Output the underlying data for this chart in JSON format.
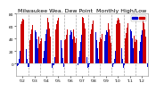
{
  "title": "Milwaukee Wea. Dew Point  Monthly High/Low",
  "background_color": "#ffffff",
  "plot_background": "#ffffff",
  "bar_color_high": "#cc0000",
  "bar_color_low": "#0000cc",
  "ylim": [
    -20,
    80
  ],
  "yticks": [
    0,
    20,
    40,
    60,
    80
  ],
  "months_per_year": 12,
  "n_years": 11,
  "data_high": [
    42,
    36,
    46,
    52,
    63,
    68,
    72,
    71,
    65,
    54,
    44,
    34,
    38,
    37,
    47,
    55,
    62,
    70,
    74,
    72,
    64,
    54,
    43,
    32,
    36,
    41,
    47,
    54,
    64,
    71,
    75,
    73,
    66,
    56,
    43,
    31,
    43,
    40,
    48,
    54,
    63,
    69,
    73,
    71,
    65,
    55,
    44,
    34,
    37,
    39,
    46,
    55,
    62,
    70,
    74,
    72,
    64,
    54,
    43,
    33,
    41,
    38,
    47,
    54,
    63,
    70,
    75,
    73,
    65,
    56,
    44,
    32,
    39,
    41,
    48,
    54,
    63,
    69,
    73,
    71,
    65,
    55,
    43,
    35,
    42,
    39,
    47,
    55,
    64,
    70,
    74,
    72,
    65,
    54,
    44,
    33,
    38,
    40,
    46,
    55,
    63,
    69,
    73,
    71,
    64,
    55,
    43,
    32,
    43,
    41,
    49,
    57,
    65,
    72,
    76,
    74,
    66,
    55,
    44,
    34,
    39,
    38,
    47,
    55,
    63,
    70,
    74,
    72,
    65,
    55,
    43,
    33
  ],
  "data_low": [
    -4,
    -2,
    8,
    20,
    34,
    44,
    52,
    49,
    37,
    23,
    8,
    -5,
    -5,
    -3,
    10,
    22,
    35,
    46,
    53,
    51,
    39,
    24,
    10,
    -6,
    -6,
    0,
    9,
    21,
    36,
    47,
    54,
    52,
    40,
    25,
    8,
    -7,
    -3,
    -2,
    11,
    23,
    35,
    45,
    52,
    50,
    38,
    24,
    9,
    -5,
    -5,
    -1,
    8,
    22,
    34,
    46,
    53,
    51,
    39,
    25,
    9,
    -6,
    -4,
    -3,
    10,
    21,
    35,
    46,
    54,
    52,
    40,
    24,
    10,
    -7,
    -5,
    -1,
    9,
    22,
    35,
    45,
    52,
    50,
    38,
    24,
    8,
    -5,
    -4,
    -2,
    10,
    22,
    36,
    46,
    53,
    51,
    39,
    25,
    9,
    -6,
    -6,
    -1,
    8,
    21,
    35,
    45,
    52,
    50,
    38,
    24,
    8,
    -7,
    -3,
    -1,
    11,
    23,
    36,
    47,
    54,
    52,
    40,
    25,
    10,
    -5,
    -5,
    -2,
    9,
    21,
    35,
    46,
    53,
    51,
    39,
    24,
    9,
    -6
  ],
  "year_labels": [
    "'02",
    "'03",
    "'04",
    "'05",
    "'06",
    "'07",
    "'08",
    "'09",
    "'10",
    "'11",
    "'12"
  ],
  "dashed_lines_color": "#aaaaaa",
  "title_fontsize": 4.5,
  "tick_fontsize": 3.2,
  "legend_fontsize": 2.8
}
